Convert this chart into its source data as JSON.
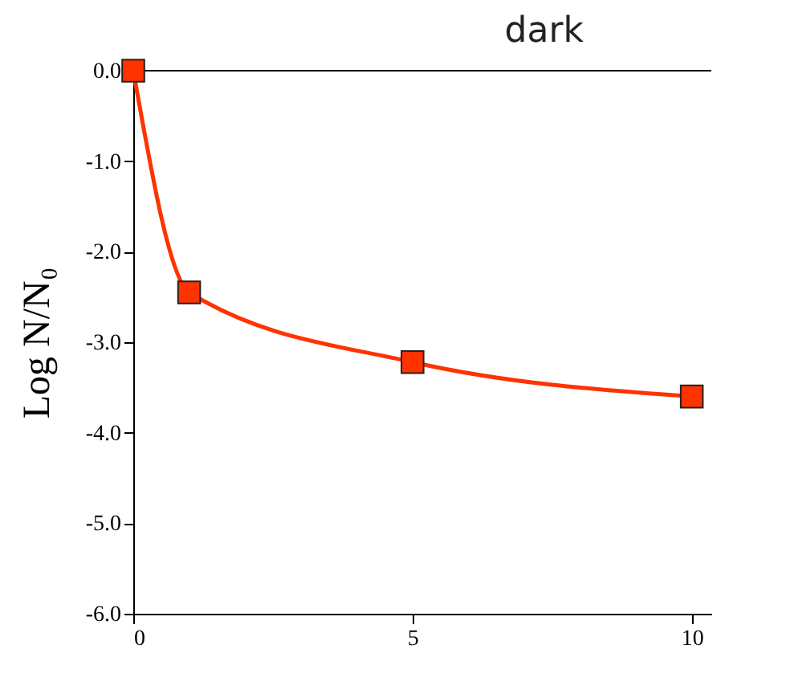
{
  "chart_data": {
    "type": "line",
    "title": "dark",
    "ylabel": "Log N/N₀",
    "x": [
      0,
      1,
      5,
      10
    ],
    "series": [
      {
        "color": "#ff3300",
        "values": [
          0.0,
          -2.45,
          -3.22,
          -3.6
        ]
      }
    ],
    "xlim": [
      0,
      10.35
    ],
    "xticks": [
      0,
      5,
      10
    ],
    "ylim": [
      -6,
      0
    ],
    "yticks": [
      {
        "value": 0,
        "label": "0.0"
      },
      {
        "value": -1,
        "label": "-1.0"
      },
      {
        "value": -2,
        "label": "-2.0"
      },
      {
        "value": -3,
        "label": "-3.0"
      },
      {
        "value": -4,
        "label": "-4.0"
      },
      {
        "value": -5,
        "label": "-5.0"
      },
      {
        "value": -6,
        "label": "-6.0"
      }
    ],
    "ref_lines": [
      {
        "axis": "y",
        "value": 0,
        "color": "#000000"
      }
    ],
    "marker": "square",
    "line_style": "solid",
    "grid": false
  }
}
